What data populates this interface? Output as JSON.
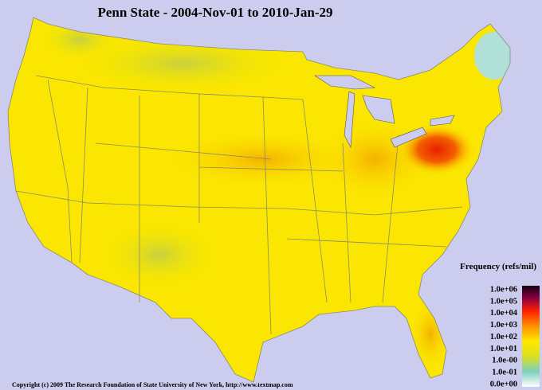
{
  "title": "Penn State - 2004-Nov-01 to 2010-Jan-29",
  "legend": {
    "title": "Frequency (refs/mil)",
    "labels": [
      "1.0e+06",
      "1.0e+05",
      "1.0e+04",
      "1.0e+03",
      "1.0e+02",
      "1.0e+01",
      "1.0e-00",
      "1.0e-01",
      "0.0e+00"
    ]
  },
  "footer": "Copyright (c) 2009 The Research Foundation of State University of New York, http://www.textmap.com"
}
